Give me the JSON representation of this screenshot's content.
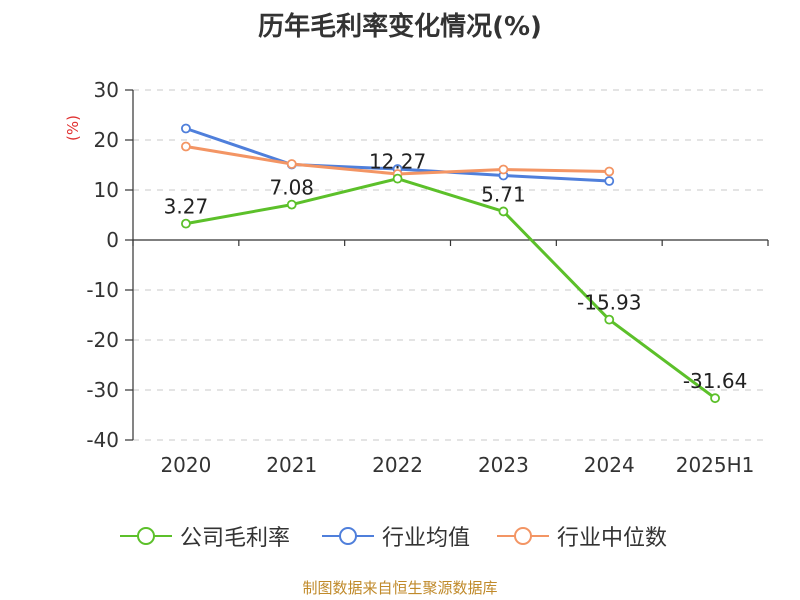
{
  "chart_data": {
    "type": "line",
    "title": "历年毛利率变化情况(%)",
    "unit_label": "(%)",
    "categories": [
      "2020",
      "2021",
      "2022",
      "2023",
      "2024",
      "2025H1"
    ],
    "ylim": [
      -40,
      30
    ],
    "yticks": [
      30,
      20,
      10,
      0,
      -10,
      -20,
      -30,
      -40
    ],
    "grid": true,
    "legend_position": "bottom",
    "series": [
      {
        "name": "公司毛利率",
        "color": "#5cc02a",
        "values": [
          3.27,
          7.08,
          12.27,
          5.71,
          -15.93,
          -31.64
        ],
        "labels": [
          "3.27",
          "7.08",
          "12.27",
          "5.71",
          "-15.93",
          "-31.64"
        ]
      },
      {
        "name": "行业均值",
        "color": "#4f7fdb",
        "values": [
          22.3,
          15.1,
          14.2,
          12.9,
          11.8,
          null
        ]
      },
      {
        "name": "行业中位数",
        "color": "#f39564",
        "values": [
          18.7,
          15.2,
          13.2,
          14.1,
          13.7,
          null
        ]
      }
    ]
  },
  "source_text": "制图数据来自恒生聚源数据库"
}
